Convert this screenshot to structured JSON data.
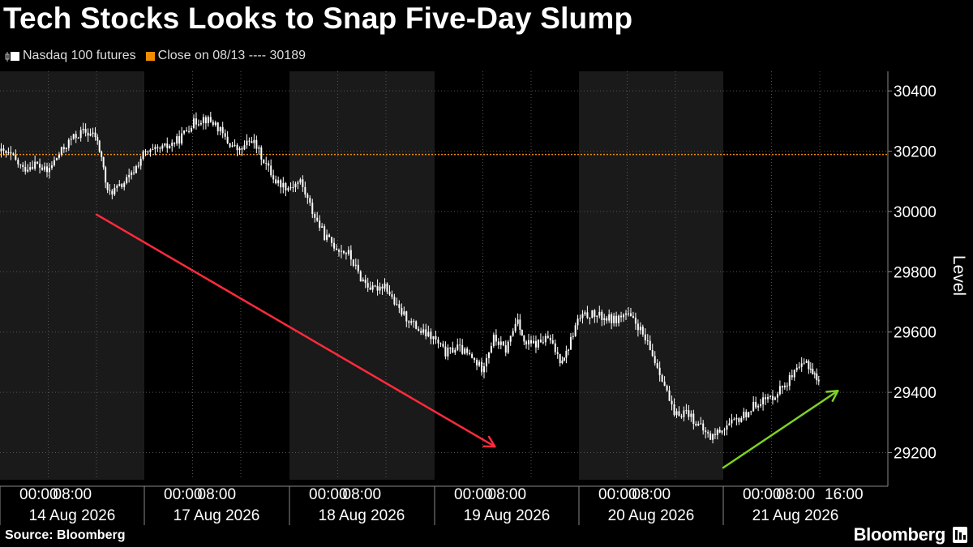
{
  "title": "Tech Stocks Looks to Snap Five-Day Slump",
  "legend": {
    "series_label": "Nasdaq 100 futures",
    "close_label": "Close on 08/13 ---- 30189"
  },
  "footer": {
    "source": "Source: Bloomberg",
    "brand": "Bloomberg"
  },
  "colors": {
    "background": "#000000",
    "band": "#1a1a1a",
    "candles": "#ffffff",
    "reference_line": "#f08c00",
    "down_arrow": "#ff2a3c",
    "up_arrow": "#7ed321",
    "grid": "#555555"
  },
  "chart_data": {
    "type": "line",
    "ylabel": "Level",
    "ylim": [
      29110,
      30465
    ],
    "yticks": [
      29200,
      29400,
      29600,
      29800,
      30000,
      30200,
      30400
    ],
    "reference_line": {
      "value": 30189
    },
    "x_axis": {
      "tick_labels": [
        "00:00",
        "08:00",
        "00:00",
        "08:00",
        "00:00",
        "08:00",
        "00:00",
        "08:00",
        "00:00",
        "08:00",
        "00:00",
        "08:00",
        "16:00"
      ],
      "day_labels": [
        "14 Aug 2026",
        "17 Aug 2026",
        "18 Aug 2026",
        "19 Aug 2026",
        "20 Aug 2026",
        "21 Aug 2026"
      ]
    },
    "series": [
      {
        "name": "Nasdaq 100 futures",
        "points": [
          [
            "14 Aug 00:00",
            30200
          ],
          [
            "14 Aug 02:00",
            30185
          ],
          [
            "14 Aug 04:00",
            30140
          ],
          [
            "14 Aug 06:00",
            30160
          ],
          [
            "14 Aug 08:00",
            30130
          ],
          [
            "14 Aug 10:00",
            30190
          ],
          [
            "14 Aug 12:00",
            30240
          ],
          [
            "14 Aug 14:00",
            30265
          ],
          [
            "14 Aug 16:00",
            30250
          ],
          [
            "14 Aug 17:00",
            30180
          ],
          [
            "14 Aug 18:00",
            30060
          ],
          [
            "14 Aug 20:00",
            30080
          ],
          [
            "14 Aug 22:00",
            30120
          ],
          [
            "17 Aug 00:00",
            30190
          ],
          [
            "17 Aug 02:00",
            30200
          ],
          [
            "17 Aug 04:00",
            30215
          ],
          [
            "17 Aug 06:00",
            30240
          ],
          [
            "17 Aug 08:00",
            30290
          ],
          [
            "17 Aug 10:00",
            30310
          ],
          [
            "17 Aug 12:00",
            30290
          ],
          [
            "17 Aug 14:00",
            30230
          ],
          [
            "17 Aug 16:00",
            30200
          ],
          [
            "17 Aug 18:00",
            30240
          ],
          [
            "17 Aug 20:00",
            30170
          ],
          [
            "17 Aug 22:00",
            30100
          ],
          [
            "18 Aug 00:00",
            30080
          ],
          [
            "18 Aug 02:00",
            30100
          ],
          [
            "18 Aug 04:00",
            30000
          ],
          [
            "18 Aug 06:00",
            29920
          ],
          [
            "18 Aug 08:00",
            29880
          ],
          [
            "18 Aug 10:00",
            29860
          ],
          [
            "18 Aug 12:00",
            29780
          ],
          [
            "18 Aug 14:00",
            29740
          ],
          [
            "18 Aug 16:00",
            29760
          ],
          [
            "18 Aug 18:00",
            29680
          ],
          [
            "18 Aug 20:00",
            29640
          ],
          [
            "18 Aug 22:00",
            29600
          ],
          [
            "19 Aug 00:00",
            29580
          ],
          [
            "19 Aug 02:00",
            29530
          ],
          [
            "19 Aug 04:00",
            29550
          ],
          [
            "19 Aug 06:00",
            29520
          ],
          [
            "19 Aug 08:00",
            29480
          ],
          [
            "19 Aug 10:00",
            29580
          ],
          [
            "19 Aug 12:00",
            29540
          ],
          [
            "19 Aug 14:00",
            29650
          ],
          [
            "19 Aug 15:00",
            29560
          ],
          [
            "19 Aug 17:00",
            29560
          ],
          [
            "19 Aug 19:00",
            29580
          ],
          [
            "19 Aug 21:00",
            29510
          ],
          [
            "19 Aug 22:00",
            29530
          ],
          [
            "20 Aug 00:00",
            29640
          ],
          [
            "20 Aug 02:00",
            29660
          ],
          [
            "20 Aug 04:00",
            29650
          ],
          [
            "20 Aug 06:00",
            29640
          ],
          [
            "20 Aug 08:00",
            29660
          ],
          [
            "20 Aug 10:00",
            29620
          ],
          [
            "20 Aug 12:00",
            29540
          ],
          [
            "20 Aug 14:00",
            29450
          ],
          [
            "20 Aug 16:00",
            29320
          ],
          [
            "20 Aug 18:00",
            29340
          ],
          [
            "20 Aug 20:00",
            29290
          ],
          [
            "20 Aug 22:00",
            29250
          ],
          [
            "21 Aug 00:00",
            29280
          ],
          [
            "21 Aug 02:00",
            29300
          ],
          [
            "21 Aug 04:00",
            29330
          ],
          [
            "21 Aug 06:00",
            29370
          ],
          [
            "21 Aug 08:00",
            29380
          ],
          [
            "21 Aug 10:00",
            29420
          ],
          [
            "21 Aug 12:00",
            29460
          ],
          [
            "21 Aug 14:00",
            29500
          ],
          [
            "21 Aug 15:00",
            29470
          ],
          [
            "21 Aug 16:00",
            29430
          ]
        ]
      }
    ],
    "annotations": [
      {
        "type": "arrow",
        "color": "red",
        "from": [
          "14 Aug 16:00",
          29990
        ],
        "to": [
          "19 Aug 10:00",
          29220
        ]
      },
      {
        "type": "arrow",
        "color": "green",
        "from": [
          "21 Aug 00:00",
          29150
        ],
        "to": [
          "21 Aug 19:00",
          29405
        ]
      }
    ]
  }
}
